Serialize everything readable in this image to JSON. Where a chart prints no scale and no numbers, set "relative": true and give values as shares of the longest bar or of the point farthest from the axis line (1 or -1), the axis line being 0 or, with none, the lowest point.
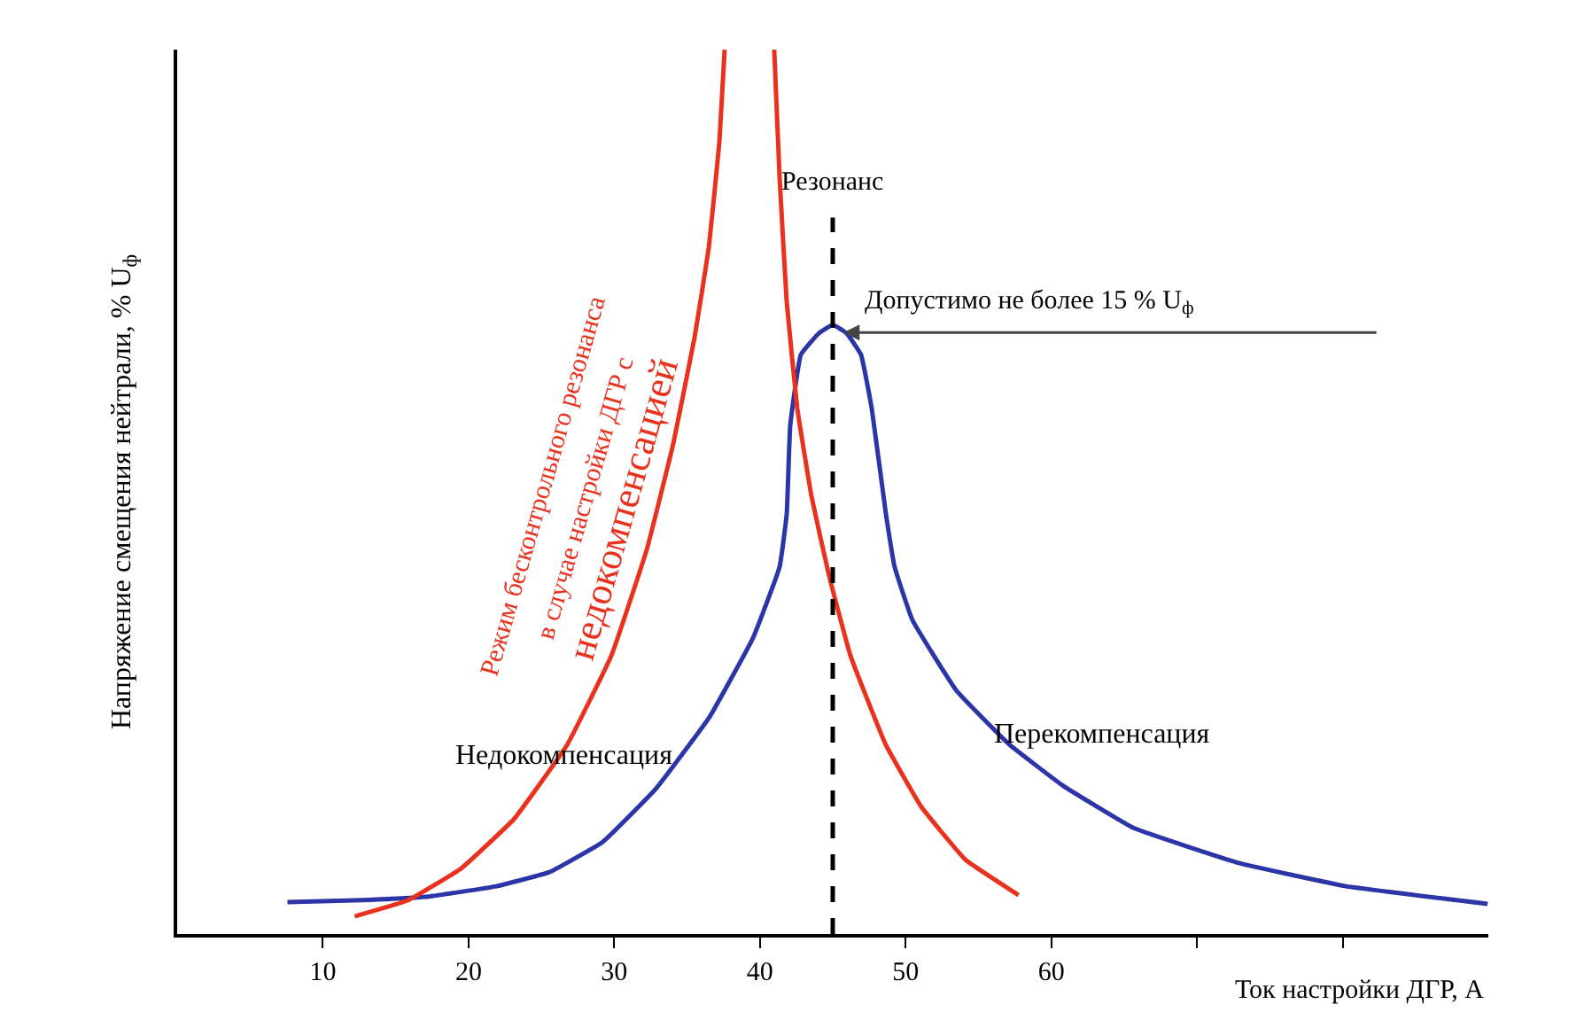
{
  "chart_data": {
    "type": "line",
    "relative": true,
    "xlabel": "Ток настройки ДГР, А",
    "ylabel": "Напряжение смещения нейтрали, % U$_{ф}$",
    "xlim": [
      0,
      90
    ],
    "xticks": [
      10,
      20,
      30,
      40,
      50,
      60,
      {
        "value": 70,
        "label": null
      },
      {
        "value": 80,
        "label": null
      }
    ],
    "grid": false,
    "marker": "none",
    "line_style": "solid",
    "series": [
      {
        "color": "#2b35a8",
        "x": [
          7.57,
          12.19,
          17.05,
          21.91,
          25.55,
          29.2,
          32.84,
          36.49,
          39.53,
          41.35,
          41.84,
          42.08,
          42.81,
          44.03,
          45.0,
          45.97,
          46.94,
          47.67,
          48.65,
          49.25,
          50.47,
          53.5,
          57.14,
          60.78,
          65.65,
          72.94,
          80.23,
          89.95
        ],
        "values": [
          0.036,
          0.038,
          0.042,
          0.054,
          0.07,
          0.104,
          0.164,
          0.244,
          0.335,
          0.415,
          0.475,
          0.575,
          0.655,
          0.679,
          0.689,
          0.679,
          0.655,
          0.595,
          0.475,
          0.415,
          0.355,
          0.275,
          0.214,
          0.168,
          0.12,
          0.08,
          0.054,
          0.034
        ]
      },
      {
        "color": "#e8321e",
        "x": [
          12.19,
          15.83,
          19.48,
          23.12,
          26.77,
          29.81,
          32.24,
          34.06,
          35.52,
          36.49,
          37.22,
          37.58,
          39.3,
          40.98,
          41.35,
          41.84,
          42.56,
          43.54,
          44.75,
          46.21,
          48.64,
          51.07,
          54.11,
          57.75
        ],
        "values": [
          0.02,
          0.038,
          0.074,
          0.13,
          0.214,
          0.315,
          0.435,
          0.555,
          0.675,
          0.776,
          0.896,
          1.0,
          null,
          1.0,
          0.856,
          0.715,
          0.595,
          0.495,
          0.405,
          0.315,
          0.214,
          0.144,
          0.084,
          0.044
        ]
      }
    ],
    "ref_lines": [
      {
        "axis": "x",
        "value": 45,
        "label": "Резонанс",
        "color": "#000000",
        "line_style": "dashed"
      }
    ],
    "annotations": [
      {
        "text": "Допустимо не более 15 % U$_{ф}$",
        "x": 45.5,
        "y": 0.68
      },
      "Недокомпенсация",
      "Перекомпенсация",
      "Режим бесконтрольного резонанса",
      "в случае настройки ДГР с",
      "недокомпенсацией"
    ]
  }
}
